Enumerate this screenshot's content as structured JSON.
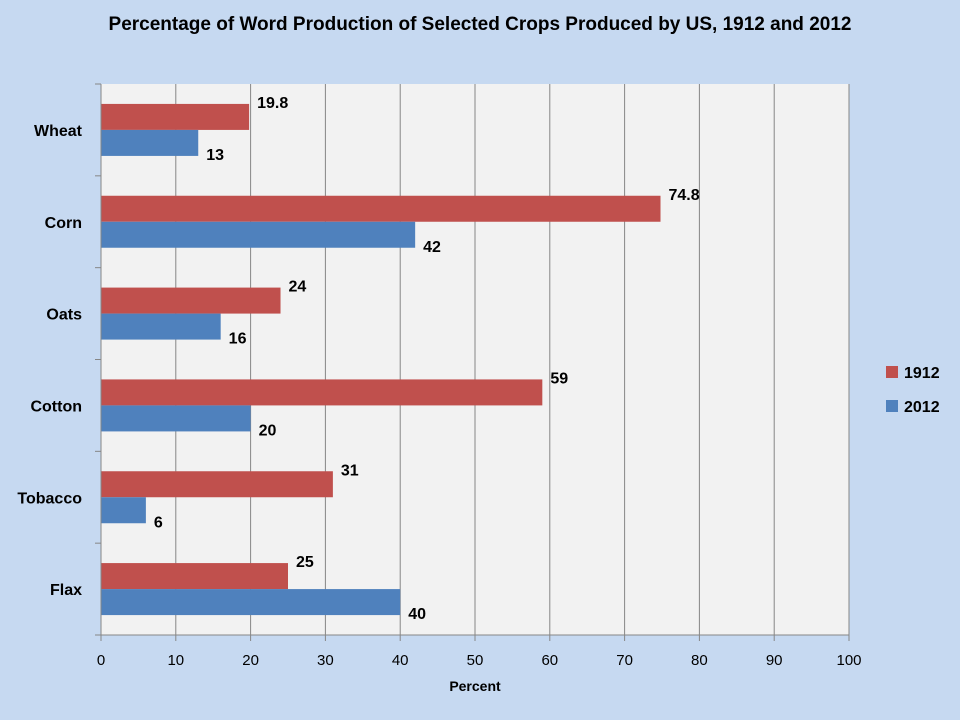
{
  "chart_data": {
    "type": "bar",
    "orientation": "horizontal",
    "title": "Percentage of Word Production of Selected Crops Produced by US, 1912 and 2012",
    "xlabel": "Percent",
    "ylabel": "",
    "xlim": [
      0,
      100
    ],
    "x_ticks": [
      0,
      10,
      20,
      30,
      40,
      50,
      60,
      70,
      80,
      90,
      100
    ],
    "grid": true,
    "legend_position": "right",
    "categories": [
      "Wheat",
      "Corn",
      "Oats",
      "Cotton",
      "Tobacco",
      "Flax"
    ],
    "series": [
      {
        "name": "1912",
        "color": "#c0504d",
        "values": [
          19.8,
          74.8,
          24,
          59,
          31,
          25
        ],
        "labels": [
          "19.8",
          "74.8",
          "24",
          "59",
          "31",
          "25"
        ]
      },
      {
        "name": "2012",
        "color": "#4f81bd",
        "values": [
          13,
          42,
          16,
          20,
          6,
          40
        ],
        "labels": [
          "13",
          "42",
          "16",
          "20",
          "6",
          "40"
        ]
      }
    ]
  }
}
